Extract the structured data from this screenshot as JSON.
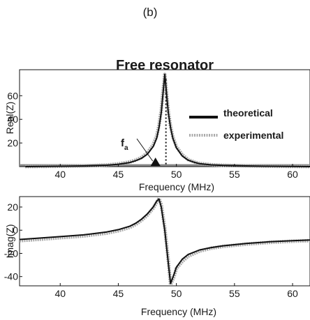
{
  "panel_label": "(b)",
  "chart_data": [
    {
      "type": "line",
      "title": "Free resonator",
      "xlabel": "Frequency (MHz)",
      "ylabel": "Real(Z)",
      "xlim": [
        36.5,
        61.5
      ],
      "ylim": [
        0,
        82
      ],
      "xticks": [
        40,
        45,
        50,
        55,
        60
      ],
      "yticks": [
        20,
        40,
        60
      ],
      "legend": {
        "placement": "right",
        "entries": [
          {
            "name": "theoretical",
            "color": "#111111"
          },
          {
            "name": "experimental",
            "color": "#aaaaaa"
          }
        ]
      },
      "annotation": {
        "main": "f",
        "sub": "a",
        "x": 48.2
      },
      "marker_x": 49.1,
      "series": [
        {
          "name": "theoretical",
          "color": "#111111",
          "x": [
            37,
            40,
            42,
            44,
            45,
            46,
            46.5,
            47,
            47.5,
            48,
            48.3,
            48.5,
            48.7,
            48.85,
            49,
            49.15,
            49.3,
            49.5,
            49.7,
            50,
            50.5,
            51,
            51.5,
            52,
            53,
            54,
            56,
            58,
            61.5
          ],
          "y": [
            0,
            0.3,
            0.6,
            1.2,
            2,
            3.5,
            5,
            7,
            10.5,
            17,
            24,
            33,
            46,
            62,
            78,
            62,
            46,
            33,
            24,
            16,
            9,
            5.5,
            3.8,
            2.5,
            1.5,
            1,
            0.6,
            0.3,
            0
          ]
        },
        {
          "name": "experimental",
          "color": "#aaaaaa",
          "x": [
            37,
            40,
            42,
            44,
            45,
            46,
            46.5,
            47,
            47.5,
            48,
            48.3,
            48.5,
            48.7,
            48.85,
            49,
            49.15,
            49.3,
            49.5,
            49.7,
            50,
            50.5,
            51,
            51.5,
            52,
            53,
            54,
            56,
            58,
            61.5
          ],
          "y": [
            0,
            0.3,
            0.6,
            1.4,
            2.3,
            4,
            5.5,
            7.8,
            11.5,
            18.5,
            26,
            35,
            48,
            64,
            78,
            63,
            47,
            34,
            25,
            17,
            10,
            6,
            4,
            2.7,
            1.6,
            1.1,
            0.6,
            0.3,
            0
          ]
        }
      ]
    },
    {
      "type": "line",
      "title": "",
      "xlabel": "Frequency (MHz)",
      "ylabel": "Imag(Z)",
      "xlim": [
        36.5,
        61.5
      ],
      "ylim": [
        -48,
        29
      ],
      "xticks": [
        40,
        45,
        50,
        55,
        60
      ],
      "yticks": [
        20,
        0,
        -20,
        -40
      ],
      "series": [
        {
          "name": "theoretical",
          "color": "#111111",
          "x": [
            36.5,
            38,
            40,
            42,
            44,
            45,
            46,
            46.5,
            47,
            47.5,
            48,
            48.3,
            48.5,
            48.7,
            49,
            49.3,
            49.5,
            49.8,
            50,
            50.5,
            51,
            52,
            53,
            54,
            56,
            58,
            60,
            61.5
          ],
          "y": [
            -8,
            -7,
            -5.5,
            -4,
            -1.5,
            0.5,
            3.5,
            6,
            9.5,
            14,
            20,
            25,
            27,
            20,
            0,
            -28,
            -46,
            -38,
            -32,
            -25,
            -21,
            -17,
            -15,
            -13.5,
            -11.5,
            -10,
            -9,
            -8.5
          ]
        },
        {
          "name": "experimental",
          "color": "#aaaaaa",
          "x": [
            36.5,
            38,
            40,
            42,
            44,
            45,
            46,
            46.5,
            47,
            47.5,
            48,
            48.3,
            48.5,
            48.7,
            49,
            49.3,
            49.5,
            49.8,
            50,
            50.5,
            51,
            52,
            53,
            54,
            56,
            58,
            60,
            61.5
          ],
          "y": [
            -9,
            -8,
            -6.5,
            -5,
            -2.5,
            -0.5,
            2.5,
            5,
            8.5,
            13,
            19,
            24,
            27.5,
            22,
            2,
            -26,
            -47,
            -40,
            -33,
            -27,
            -22.5,
            -18,
            -15.5,
            -14,
            -12,
            -10.5,
            -9.5,
            -9
          ]
        }
      ]
    }
  ]
}
